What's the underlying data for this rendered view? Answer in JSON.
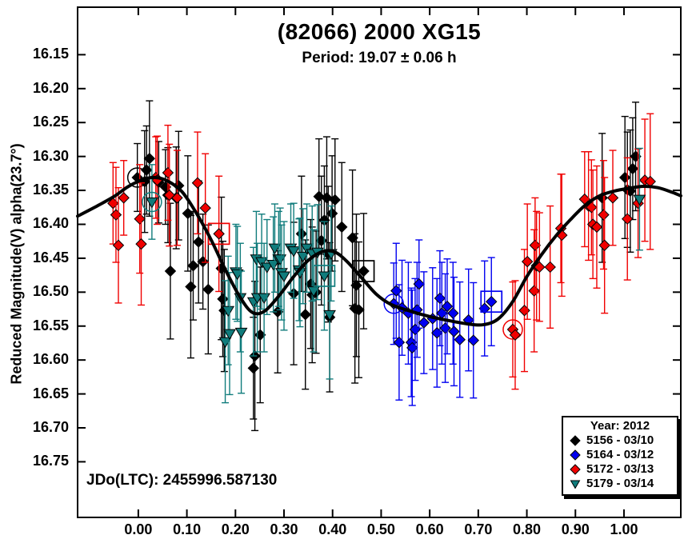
{
  "chart_data": {
    "type": "scatter",
    "title": "(82066) 2000 XG15",
    "subtitle": "Period: 19.07 ± 0.06 h",
    "ylabel": "Reduced Magnitude(V) alpha(23.7°)",
    "xlabel": "",
    "annotation": "JDo(LTC): 2455996.587130",
    "grid": false,
    "y_axis_inverted": true,
    "xlim": [
      -0.125,
      1.117
    ],
    "ylim": [
      16.08,
      16.832
    ],
    "x_tick_labels": [
      "0.00",
      "0.10",
      "0.20",
      "0.30",
      "0.40",
      "0.50",
      "0.60",
      "0.70",
      "0.80",
      "0.90",
      "1.00"
    ],
    "y_tick_labels": [
      "16.15",
      "16.20",
      "16.25",
      "16.30",
      "16.35",
      "16.40",
      "16.45",
      "16.50",
      "16.55",
      "16.60",
      "16.65",
      "16.70",
      "16.75"
    ],
    "legend": {
      "position": "bottom-right",
      "title": "Year: 2012"
    },
    "series": [
      {
        "name": "5156 - 03/10",
        "marker": "diamond",
        "color": "#000000",
        "points": [
          [
            -0.002,
            16.331,
            0.05,
            "c"
          ],
          [
            0.013,
            16.337,
            0.075
          ],
          [
            0.017,
            16.32,
            0.065
          ],
          [
            0.023,
            16.303,
            0.085
          ],
          [
            0.042,
            16.338,
            0.06
          ],
          [
            0.056,
            16.345,
            0.055
          ],
          [
            0.061,
            16.357,
            0.07
          ],
          [
            0.066,
            16.469,
            0.1
          ],
          [
            0.078,
            16.361,
            0.075
          ],
          [
            0.083,
            16.343,
            0.08
          ],
          [
            0.102,
            16.384,
            0.085
          ],
          [
            0.108,
            16.492,
            0.105
          ],
          [
            0.113,
            16.461,
            0.08
          ],
          [
            0.124,
            16.426,
            0.09
          ],
          [
            0.133,
            16.455,
            0.07
          ],
          [
            0.144,
            16.496,
            0.095
          ],
          [
            0.171,
            16.465,
            0.105
          ],
          [
            0.174,
            16.51,
            0.085
          ],
          [
            0.177,
            16.527,
            0.09
          ],
          [
            0.237,
            16.612,
            0.075
          ],
          [
            0.24,
            16.594,
            0.11
          ],
          [
            0.251,
            16.563,
            0.1
          ],
          [
            0.287,
            16.529,
            0.09
          ],
          [
            0.32,
            16.502,
            0.105
          ],
          [
            0.336,
            16.414,
            0.085
          ],
          [
            0.344,
            16.533,
            0.11
          ],
          [
            0.355,
            16.488,
            0.095
          ],
          [
            0.358,
            16.504,
            0.1
          ],
          [
            0.366,
            16.5,
            0.09
          ],
          [
            0.372,
            16.359,
            0.085
          ],
          [
            0.377,
            16.424,
            0.095
          ],
          [
            0.383,
            16.394,
            0.08
          ],
          [
            0.388,
            16.361,
            0.09
          ],
          [
            0.391,
            16.444,
            0.1
          ],
          [
            0.394,
            16.537,
            0.11
          ],
          [
            0.399,
            16.384,
            0.085
          ],
          [
            0.405,
            16.364,
            0.09
          ],
          [
            0.419,
            16.404,
            0.095
          ],
          [
            0.441,
            16.42,
            0.1
          ],
          [
            0.446,
            16.524,
            0.11
          ],
          [
            0.449,
            16.49,
            0.105
          ],
          [
            0.454,
            16.526,
            0.1
          ],
          [
            0.464,
            16.469,
            0.085,
            "s"
          ],
          [
            0.955,
            16.361,
            0.095
          ],
          [
            1.002,
            16.331,
            0.09
          ],
          [
            1.007,
            16.349,
            0.085
          ],
          [
            1.013,
            16.351,
            0.09
          ],
          [
            1.018,
            16.318,
            0.075
          ],
          [
            1.024,
            16.3,
            0.08
          ]
        ]
      },
      {
        "name": "5164 - 03/12",
        "marker": "diamond",
        "color": "#0000f0",
        "points": [
          [
            0.526,
            16.517,
            0.06,
            "c"
          ],
          [
            0.531,
            16.498,
            0.07
          ],
          [
            0.537,
            16.574,
            0.085
          ],
          [
            0.543,
            16.523,
            0.07
          ],
          [
            0.556,
            16.531,
            0.075
          ],
          [
            0.562,
            16.574,
            0.08
          ],
          [
            0.564,
            16.582,
            0.085
          ],
          [
            0.57,
            16.555,
            0.075
          ],
          [
            0.574,
            16.526,
            0.07
          ],
          [
            0.578,
            16.488,
            0.065
          ],
          [
            0.588,
            16.545,
            0.075
          ],
          [
            0.606,
            16.539,
            0.075
          ],
          [
            0.615,
            16.56,
            0.08
          ],
          [
            0.621,
            16.509,
            0.07
          ],
          [
            0.625,
            16.531,
            0.075
          ],
          [
            0.632,
            16.553,
            0.08
          ],
          [
            0.636,
            16.521,
            0.07
          ],
          [
            0.648,
            16.531,
            0.075
          ],
          [
            0.65,
            16.558,
            0.08
          ],
          [
            0.662,
            16.57,
            0.085
          ],
          [
            0.68,
            16.541,
            0.075
          ],
          [
            0.69,
            16.571,
            0.085
          ],
          [
            0.713,
            16.524,
            0.07
          ],
          [
            0.727,
            16.514,
            0.065,
            "s"
          ]
        ]
      },
      {
        "name": "5172 - 03/13",
        "marker": "diamond",
        "color": "#f00000",
        "points": [
          [
            -0.052,
            16.369,
            0.06
          ],
          [
            -0.046,
            16.386,
            0.07
          ],
          [
            -0.041,
            16.431,
            0.085
          ],
          [
            -0.03,
            16.361,
            0.055
          ],
          [
            0.003,
            16.392,
            0.08
          ],
          [
            0.006,
            16.429,
            0.09
          ],
          [
            0.036,
            16.331,
            0.06
          ],
          [
            0.039,
            16.335,
            0.065
          ],
          [
            0.061,
            16.324,
            0.07
          ],
          [
            0.064,
            16.357,
            0.075
          ],
          [
            0.08,
            16.361,
            0.07
          ],
          [
            0.122,
            16.339,
            0.075
          ],
          [
            0.138,
            16.376,
            0.08
          ],
          [
            0.166,
            16.414,
            0.085,
            "s"
          ],
          [
            0.771,
            16.555,
            0.07,
            "c"
          ],
          [
            0.776,
            16.563,
            0.08
          ],
          [
            0.795,
            16.527,
            0.09
          ],
          [
            0.801,
            16.455,
            0.085
          ],
          [
            0.815,
            16.498,
            0.09
          ],
          [
            0.817,
            16.431,
            0.07
          ],
          [
            0.82,
            16.461,
            0.08
          ],
          [
            0.826,
            16.463,
            0.08
          ],
          [
            0.848,
            16.463,
            0.09
          ],
          [
            0.87,
            16.406,
            0.08
          ],
          [
            0.872,
            16.416,
            0.09
          ],
          [
            0.919,
            16.363,
            0.07
          ],
          [
            0.927,
            16.373,
            0.08
          ],
          [
            0.933,
            16.375,
            0.07
          ],
          [
            0.936,
            16.4,
            0.08
          ],
          [
            0.944,
            16.404,
            0.09
          ],
          [
            0.958,
            16.386,
            0.08
          ],
          [
            0.96,
            16.431,
            0.1
          ],
          [
            0.977,
            16.361,
            0.07
          ],
          [
            1.007,
            16.392,
            0.09
          ],
          [
            1.029,
            16.369,
            0.08
          ],
          [
            1.043,
            16.335,
            0.09
          ],
          [
            1.054,
            16.337,
            0.1
          ]
        ]
      },
      {
        "name": "5179 - 03/14",
        "marker": "triangle-down",
        "color": "#107c7c",
        "points": [
          [
            0.028,
            16.367,
            0.055,
            "c"
          ],
          [
            0.179,
            16.573,
            0.09
          ],
          [
            0.185,
            16.527,
            0.08
          ],
          [
            0.188,
            16.561,
            0.09
          ],
          [
            0.201,
            16.47,
            0.07
          ],
          [
            0.204,
            16.473,
            0.07
          ],
          [
            0.21,
            16.508,
            0.08
          ],
          [
            0.212,
            16.559,
            0.09
          ],
          [
            0.237,
            16.514,
            0.08
          ],
          [
            0.243,
            16.451,
            0.07
          ],
          [
            0.245,
            16.508,
            0.08
          ],
          [
            0.254,
            16.455,
            0.07
          ],
          [
            0.259,
            16.508,
            0.08
          ],
          [
            0.265,
            16.463,
            0.07
          ],
          [
            0.278,
            16.459,
            0.07
          ],
          [
            0.281,
            16.435,
            0.065
          ],
          [
            0.289,
            16.451,
            0.07
          ],
          [
            0.292,
            16.451,
            0.075
          ],
          [
            0.295,
            16.471,
            0.07
          ],
          [
            0.3,
            16.476,
            0.08
          ],
          [
            0.314,
            16.435,
            0.065
          ],
          [
            0.32,
            16.439,
            0.07
          ],
          [
            0.331,
            16.467,
            0.075
          ],
          [
            0.333,
            16.471,
            0.08
          ],
          [
            0.339,
            16.447,
            0.07
          ],
          [
            0.347,
            16.435,
            0.065
          ],
          [
            0.358,
            16.443,
            0.07
          ],
          [
            0.361,
            16.498,
            0.09
          ],
          [
            0.369,
            16.441,
            0.07
          ],
          [
            0.383,
            16.476,
            0.08,
            "s"
          ],
          [
            0.394,
            16.533,
            0.095
          ],
          [
            0.397,
            16.443,
            0.07
          ],
          [
            1.032,
            16.363,
            0.075
          ]
        ]
      }
    ],
    "fit_curve": {
      "color": "#000000",
      "width": 4,
      "points": [
        [
          -0.125,
          16.388
        ],
        [
          -0.09,
          16.375
        ],
        [
          -0.05,
          16.359
        ],
        [
          -0.02,
          16.344
        ],
        [
          0.01,
          16.334
        ],
        [
          0.035,
          16.331
        ],
        [
          0.06,
          16.336
        ],
        [
          0.09,
          16.352
        ],
        [
          0.12,
          16.384
        ],
        [
          0.15,
          16.423
        ],
        [
          0.18,
          16.468
        ],
        [
          0.21,
          16.508
        ],
        [
          0.235,
          16.53
        ],
        [
          0.26,
          16.528
        ],
        [
          0.29,
          16.505
        ],
        [
          0.32,
          16.477
        ],
        [
          0.35,
          16.453
        ],
        [
          0.38,
          16.44
        ],
        [
          0.405,
          16.441
        ],
        [
          0.43,
          16.455
        ],
        [
          0.46,
          16.479
        ],
        [
          0.49,
          16.503
        ],
        [
          0.52,
          16.518
        ],
        [
          0.56,
          16.528
        ],
        [
          0.6,
          16.536
        ],
        [
          0.64,
          16.542
        ],
        [
          0.68,
          16.547
        ],
        [
          0.71,
          16.548
        ],
        [
          0.74,
          16.54
        ],
        [
          0.77,
          16.515
        ],
        [
          0.8,
          16.477
        ],
        [
          0.83,
          16.445
        ],
        [
          0.86,
          16.417
        ],
        [
          0.89,
          16.393
        ],
        [
          0.92,
          16.372
        ],
        [
          0.95,
          16.358
        ],
        [
          0.98,
          16.351
        ],
        [
          1.01,
          16.347
        ],
        [
          1.04,
          16.344
        ],
        [
          1.07,
          16.346
        ],
        [
          1.1,
          16.353
        ],
        [
          1.117,
          16.358
        ]
      ]
    }
  }
}
